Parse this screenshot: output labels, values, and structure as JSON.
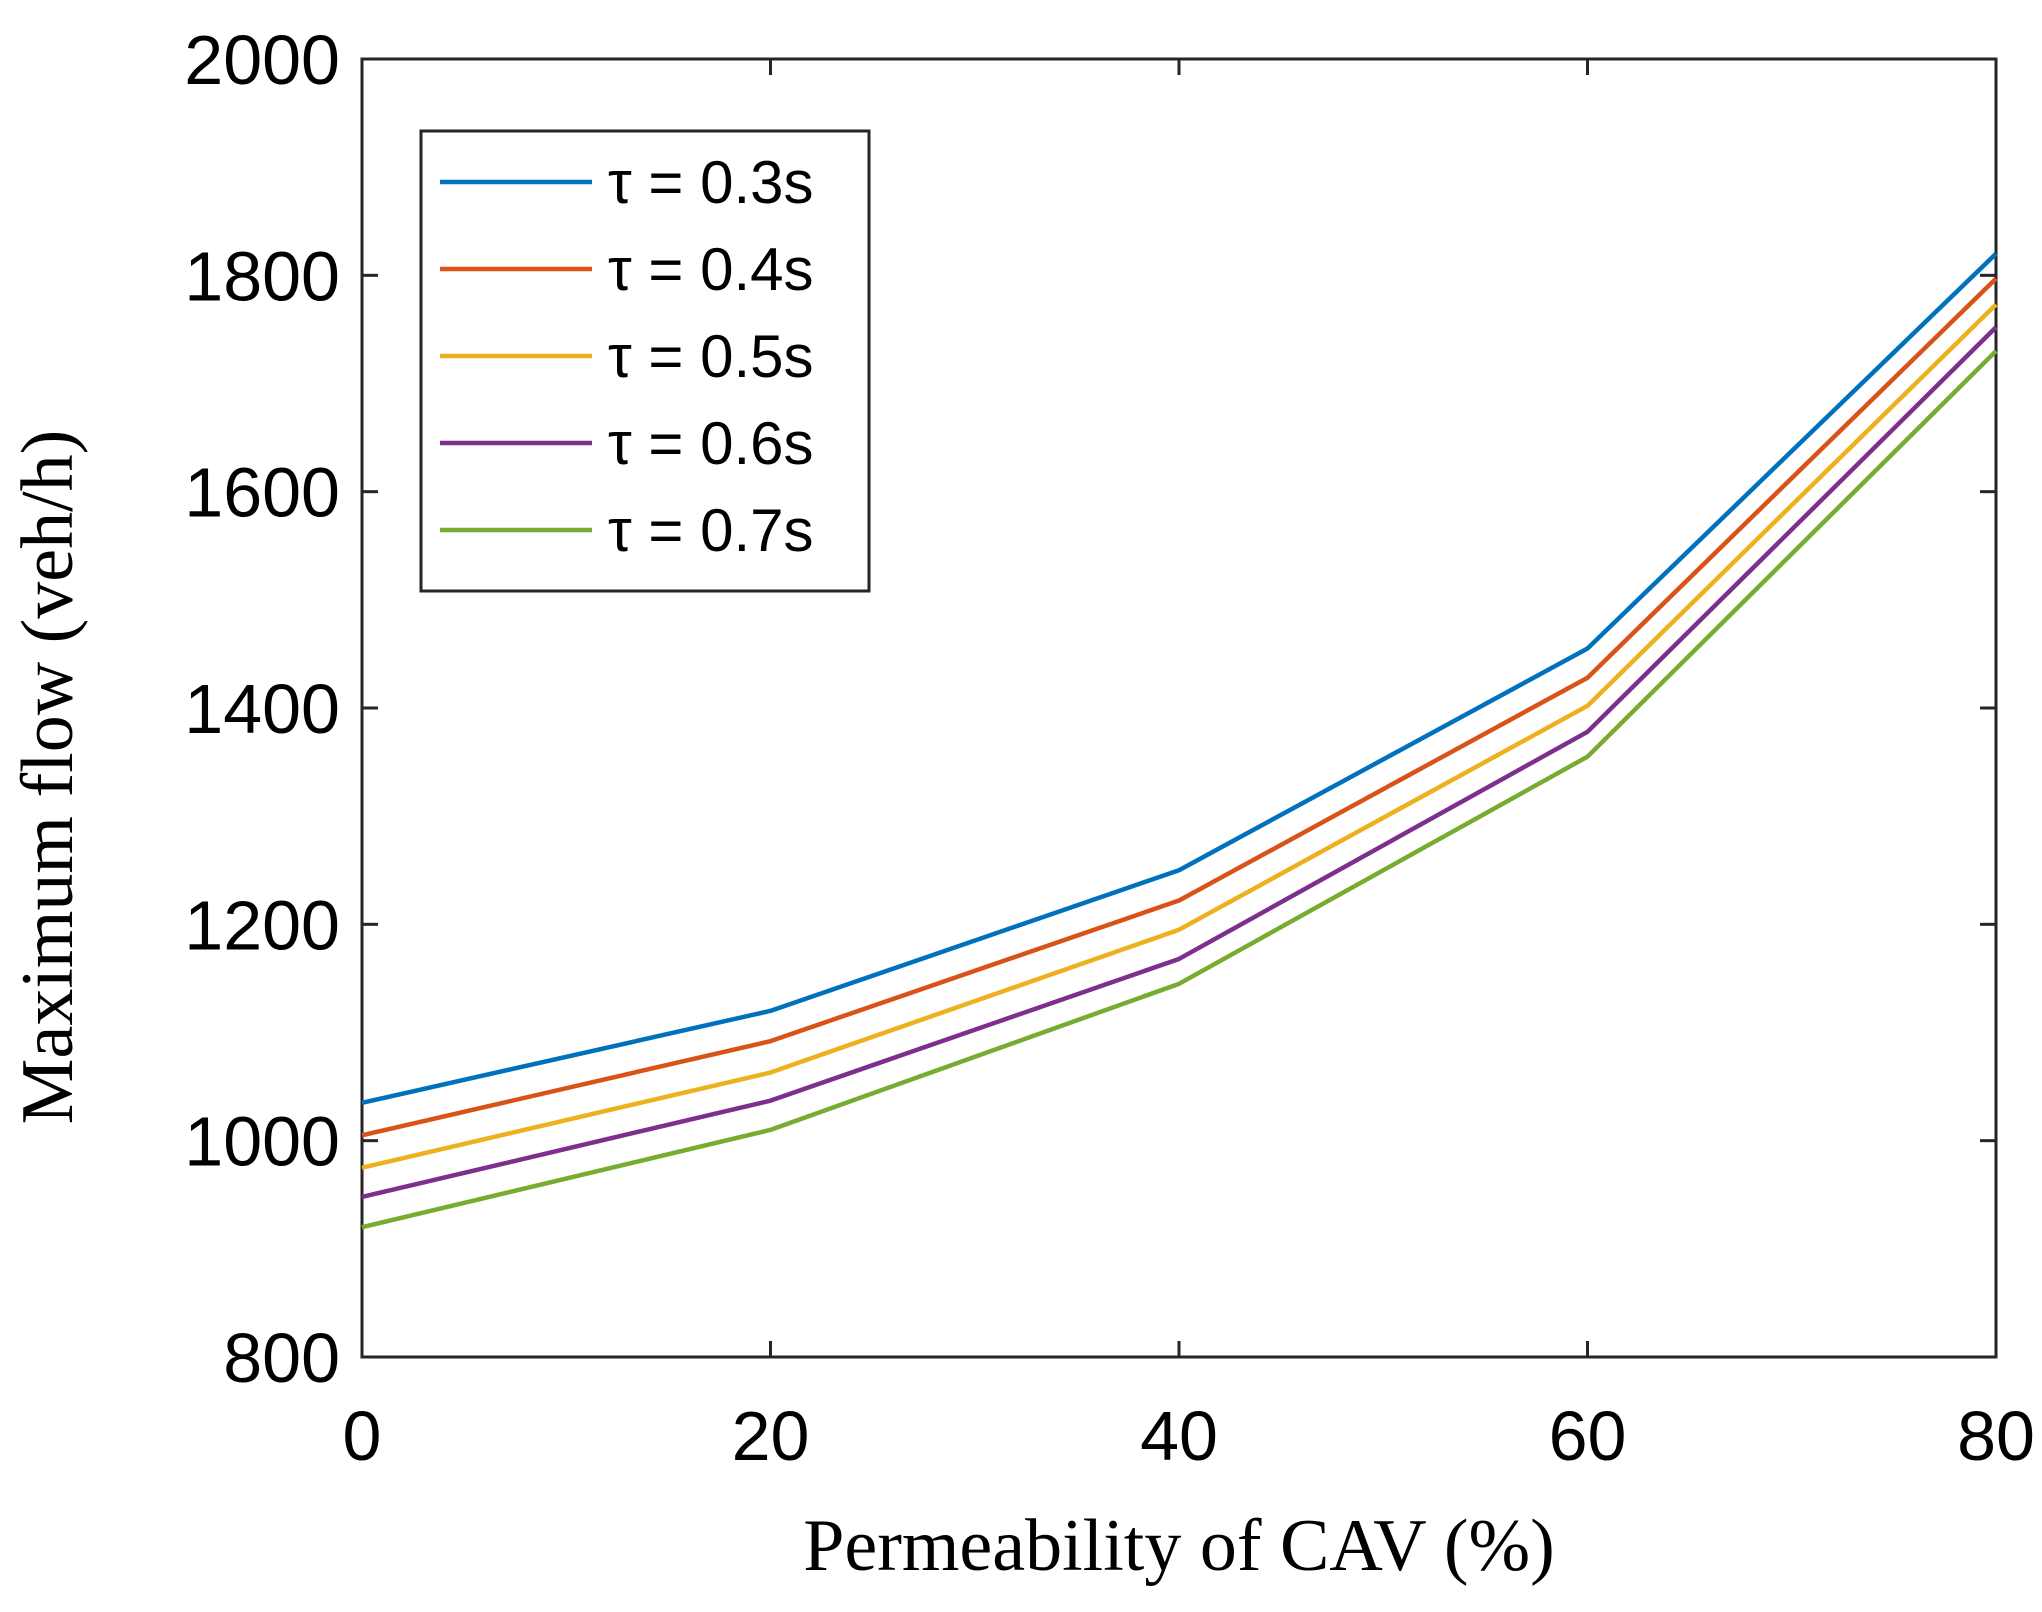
{
  "chart_data": {
    "type": "line",
    "title": "",
    "xlabel": "Permeability of CAV (%)",
    "ylabel": "Maximum flow (veh/h)",
    "x": [
      0,
      20,
      40,
      60,
      80
    ],
    "xlim": [
      0,
      80
    ],
    "ylim": [
      800,
      2000
    ],
    "xticks": [
      "0",
      "20",
      "40",
      "60",
      "80"
    ],
    "yticks": [
      "800",
      "1000",
      "1200",
      "1400",
      "1600",
      "1800",
      "2000"
    ],
    "grid": false,
    "legend_position": "top-left",
    "series": [
      {
        "name": "τ = 0.3s",
        "color": "#0072BD",
        "values": [
          1035,
          1120,
          1250,
          1455,
          1820
        ]
      },
      {
        "name": "τ = 0.4s",
        "color": "#D95319",
        "values": [
          1005,
          1092,
          1222,
          1428,
          1797
        ]
      },
      {
        "name": "τ = 0.5s",
        "color": "#EDB120",
        "values": [
          975,
          1063,
          1195,
          1402,
          1773
        ]
      },
      {
        "name": "τ = 0.6s",
        "color": "#7E2F8E",
        "values": [
          948,
          1037,
          1168,
          1378,
          1752
        ]
      },
      {
        "name": "τ = 0.7s",
        "color": "#77AC30",
        "values": [
          920,
          1010,
          1145,
          1355,
          1730
        ]
      }
    ]
  }
}
